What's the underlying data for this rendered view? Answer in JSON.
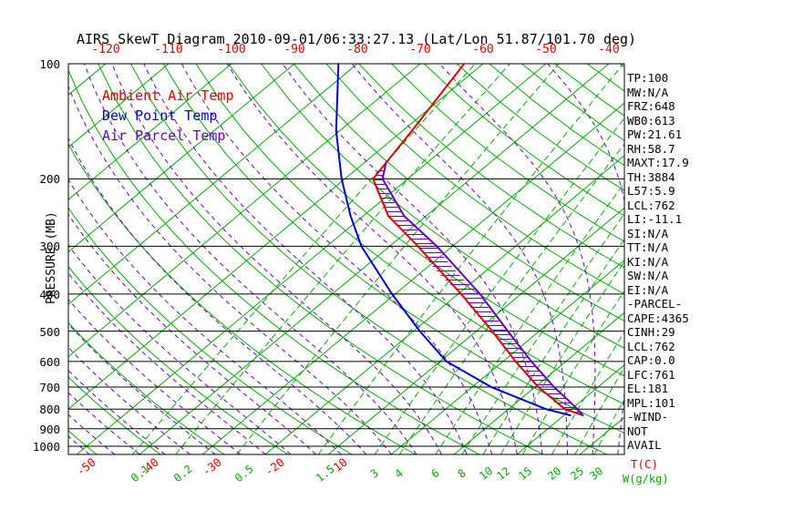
{
  "title": "AIRS SkewT Diagram 2010-09-01/06:33:27.13 (Lat/Lon 51.87/101.70 deg)",
  "legend": {
    "items": [
      {
        "label": "Ambient Air Temp",
        "color": "#dd0000"
      },
      {
        "label": "Dew Point Temp",
        "color": "#0000cc"
      },
      {
        "label": "Air Parcel Temp",
        "color": "#6600bb"
      }
    ]
  },
  "axes": {
    "pressure_label": "PRESSURE (MB)",
    "pressure_ticks": [
      "100",
      "200",
      "300",
      "400",
      "500",
      "600",
      "700",
      "800",
      "900",
      "1000"
    ],
    "top_temp_ticks": [
      "-120",
      "-110",
      "-100",
      "-90",
      "-80",
      "-70",
      "-60",
      "-50",
      "-40"
    ],
    "bottom_temp_ticks": [
      "-50",
      "-40",
      "-30",
      "-20",
      "-10"
    ],
    "mixing_ratio_ticks": [
      "0.1",
      "0.2",
      "0.5",
      "1.5",
      "3",
      "4",
      "6",
      "8",
      "10",
      "12",
      "15",
      "20",
      "25",
      "30"
    ],
    "temp_unit_label": "T(C)",
    "mixing_unit_label": "W(g/kg)"
  },
  "info_panel": {
    "lines": [
      "TP:100",
      "MW:N/A",
      "FRZ:648",
      "WB0:613",
      "PW:21.61",
      "RH:58.7",
      "MAXT:17.9",
      "TH:3884",
      "L57:5.9",
      "LCL:762",
      "LI:-11.1",
      "SI:N/A",
      "TT:N/A",
      "KI:N/A",
      "SW:N/A",
      "EI:N/A",
      "-PARCEL-",
      "CAPE:4365",
      "CINH:29",
      "LCL:762",
      "CAP:0.0",
      "LFC:761",
      "EL:181",
      "MPL:101",
      "-WIND-",
      "NOT",
      "AVAIL"
    ]
  },
  "chart_data": {
    "type": "line",
    "title": "AIRS SkewT Diagram 2010-09-01/06:33:27.13 (Lat/Lon 51.87/101.70 deg)",
    "x_axis": "Temperature (C), skewed 45 deg",
    "y_axis": "Pressure (MB), logarithmic",
    "pressure_range_mb": [
      1050,
      100
    ],
    "temp_range_at_1000mb_c": [
      -52,
      36
    ],
    "grid_on": true,
    "series": [
      {
        "name": "Ambient Air Temp",
        "color": "#dd0000",
        "points": [
          [
            830,
            23
          ],
          [
            800,
            19
          ],
          [
            700,
            10.5
          ],
          [
            600,
            2
          ],
          [
            500,
            -7.5
          ],
          [
            400,
            -19.5
          ],
          [
            300,
            -35.5
          ],
          [
            250,
            -46
          ],
          [
            200,
            -55.5
          ],
          [
            150,
            -58.5
          ],
          [
            100,
            -63
          ]
        ]
      },
      {
        "name": "Dew Point Temp",
        "color": "#0000cc",
        "points": [
          [
            830,
            21
          ],
          [
            800,
            16
          ],
          [
            700,
            3
          ],
          [
            600,
            -9
          ],
          [
            500,
            -19
          ],
          [
            400,
            -30.5
          ],
          [
            300,
            -44.5
          ],
          [
            250,
            -52
          ],
          [
            200,
            -60.5
          ],
          [
            150,
            -70.5
          ],
          [
            100,
            -83
          ]
        ]
      },
      {
        "name": "Air Parcel Temp",
        "color": "#6600bb",
        "points": [
          [
            830,
            23
          ],
          [
            800,
            21
          ],
          [
            700,
            13
          ],
          [
            600,
            4.5
          ],
          [
            500,
            -5
          ],
          [
            400,
            -16.5
          ],
          [
            300,
            -32.5
          ],
          [
            250,
            -43.5
          ],
          [
            200,
            -54
          ],
          [
            181,
            -56.6
          ]
        ]
      }
    ],
    "cape_hatch_between": [
      "Ambient Air Temp",
      "Air Parcel Temp"
    ],
    "cape_hatch_pressure_range_mb": [
      830,
      181
    ],
    "grid": {
      "isotherms_c": {
        "min": -160,
        "max": 40,
        "step": 10
      },
      "dry_adiabats_c": {
        "min": -50,
        "max": 180,
        "step": 10
      },
      "moist_adiabats_start_c": {
        "min": -64,
        "max": 40,
        "step": 4
      },
      "mixing_ratio_lines_gkg": [
        0.1,
        0.2,
        0.5,
        1.5,
        3,
        4,
        6,
        8,
        10,
        12,
        15,
        20,
        25,
        30
      ]
    }
  }
}
